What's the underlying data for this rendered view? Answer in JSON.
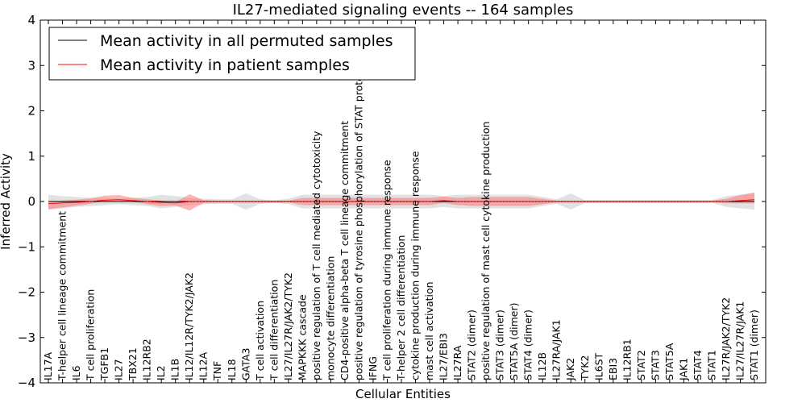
{
  "chart_data": {
    "type": "line",
    "title": "IL27-mediated signaling events -- 164 samples",
    "xlabel": "Cellular Entities",
    "ylabel": "Inferred Activity",
    "ylim": [
      -4,
      4
    ],
    "yticks": [
      -4,
      -3,
      -2,
      -1,
      0,
      1,
      2,
      3,
      4
    ],
    "yticklabels": [
      "−4",
      "−3",
      "−2",
      "−1",
      "0",
      "1",
      "2",
      "3",
      "4"
    ],
    "grid": false,
    "legend_position": "top-left",
    "categories": [
      "IL17A",
      "T-helper cell lineage commitment",
      "IL6",
      "T cell proliferation",
      "TGFB1",
      "IL27",
      "TBX21",
      "IL12RB2",
      "IL2",
      "IL1B",
      "IL12/IL12R/TYK2/JAK2",
      "IL12A",
      "TNF",
      "IL18",
      "GATA3",
      "T cell activation",
      "T cell differentiation",
      "IL27/IL27R/JAK2/TYK2",
      "MAPKKK cascade",
      "positive regulation of T cell mediated cytotoxicity",
      "monocyte differentiation",
      "CD4-positive alpha-beta T cell lineage commitment",
      "positive regulation of tyrosine phosphorylation of STAT protein",
      "IFNG",
      "T cell proliferation during immune response",
      "T-helper 2 cell differentiation",
      "cytokine production during immune response",
      "mast cell activation",
      "IL27/EBI3",
      "IL27RA",
      "STAT2 (dimer)",
      "positive regulation of mast cell cytokine production",
      "STAT3 (dimer)",
      "STAT5A (dimer)",
      "STAT4 (dimer)",
      "IL12B",
      "IL27RA/JAK1",
      "JAK2",
      "TYK2",
      "IL6ST",
      "EBI3",
      "IL12RB1",
      "STAT2",
      "STAT3",
      "STAT5A",
      "JAK1",
      "STAT4",
      "STAT1",
      "IL27R/JAK2/TYK2",
      "IL27/IL27R/JAK1",
      "STAT1 (dimer)"
    ],
    "series": [
      {
        "name": "Mean activity in all permuted samples",
        "color": "#000000",
        "values": [
          0,
          0,
          0,
          0,
          0,
          0,
          0,
          0,
          0,
          0,
          0,
          0,
          0,
          0,
          0,
          0,
          0,
          0,
          0,
          0,
          0,
          0,
          0,
          0,
          0,
          0,
          0,
          0,
          0,
          0,
          0,
          0,
          0,
          0,
          0,
          0,
          0,
          0,
          0,
          0,
          0,
          0,
          0,
          0,
          0,
          0,
          0,
          0,
          0,
          0,
          0
        ],
        "band_low": [
          -0.18,
          -0.15,
          -0.12,
          -0.1,
          -0.08,
          -0.06,
          -0.08,
          -0.1,
          -0.15,
          -0.12,
          -0.08,
          -0.06,
          -0.05,
          -0.05,
          -0.18,
          -0.05,
          -0.03,
          -0.06,
          -0.15,
          -0.15,
          -0.15,
          -0.15,
          -0.15,
          -0.15,
          -0.15,
          -0.15,
          -0.15,
          -0.15,
          -0.12,
          -0.15,
          -0.15,
          -0.15,
          -0.15,
          -0.15,
          -0.15,
          -0.1,
          -0.05,
          -0.18,
          -0.03,
          -0.03,
          -0.03,
          -0.03,
          -0.03,
          -0.03,
          -0.03,
          -0.03,
          -0.03,
          -0.03,
          -0.12,
          -0.15,
          -0.18
        ],
        "band_high": [
          0.15,
          0.12,
          0.1,
          0.08,
          0.08,
          0.06,
          0.08,
          0.1,
          0.15,
          0.12,
          0.08,
          0.06,
          0.05,
          0.05,
          0.18,
          0.05,
          0.03,
          0.06,
          0.15,
          0.15,
          0.15,
          0.15,
          0.15,
          0.15,
          0.15,
          0.15,
          0.15,
          0.15,
          0.12,
          0.15,
          0.15,
          0.15,
          0.15,
          0.15,
          0.15,
          0.1,
          0.05,
          0.18,
          0.03,
          0.03,
          0.03,
          0.03,
          0.03,
          0.03,
          0.03,
          0.03,
          0.03,
          0.03,
          0.12,
          0.15,
          0.18
        ],
        "band_color": "#bfbfbf"
      },
      {
        "name": "Mean activity in patient samples",
        "color": "#ff0000",
        "values": [
          -0.05,
          -0.03,
          -0.02,
          0.0,
          0.03,
          0.04,
          0.02,
          0.0,
          -0.02,
          -0.03,
          0.0,
          0.0,
          0.0,
          0.0,
          0.0,
          0.0,
          0.0,
          0.0,
          0.0,
          0.0,
          0.0,
          0.0,
          0.0,
          0.0,
          0.0,
          0.0,
          0.0,
          0.0,
          0.02,
          0.0,
          0.0,
          0.0,
          0.0,
          0.0,
          0.0,
          0.0,
          0.0,
          0.0,
          0.0,
          0.0,
          0.0,
          0.0,
          0.0,
          0.0,
          0.0,
          0.0,
          0.0,
          0.0,
          0.0,
          0.02,
          0.04
        ],
        "band_low": [
          -0.12,
          -0.1,
          -0.07,
          -0.05,
          -0.02,
          -0.02,
          -0.03,
          -0.06,
          -0.08,
          -0.06,
          -0.2,
          -0.03,
          -0.02,
          -0.02,
          -0.02,
          -0.02,
          -0.02,
          -0.02,
          -0.08,
          -0.08,
          -0.08,
          -0.08,
          -0.08,
          -0.08,
          -0.08,
          -0.08,
          -0.08,
          -0.08,
          -0.05,
          -0.08,
          -0.1,
          -0.1,
          -0.1,
          -0.1,
          -0.1,
          -0.06,
          -0.02,
          -0.02,
          -0.02,
          -0.02,
          -0.02,
          -0.02,
          -0.02,
          -0.02,
          -0.02,
          -0.02,
          -0.02,
          -0.02,
          -0.04,
          -0.06,
          -0.08
        ],
        "band_high": [
          0.03,
          0.05,
          0.06,
          0.07,
          0.1,
          0.1,
          0.06,
          0.05,
          0.04,
          0.02,
          0.16,
          0.03,
          0.02,
          0.02,
          0.02,
          0.02,
          0.02,
          0.02,
          0.08,
          0.08,
          0.08,
          0.08,
          0.08,
          0.08,
          0.08,
          0.08,
          0.08,
          0.08,
          0.09,
          0.08,
          0.1,
          0.1,
          0.1,
          0.1,
          0.1,
          0.06,
          0.02,
          0.02,
          0.02,
          0.02,
          0.02,
          0.02,
          0.02,
          0.02,
          0.02,
          0.02,
          0.02,
          0.02,
          0.06,
          0.12,
          0.16
        ],
        "band_color": "#ff6b6b"
      }
    ]
  }
}
